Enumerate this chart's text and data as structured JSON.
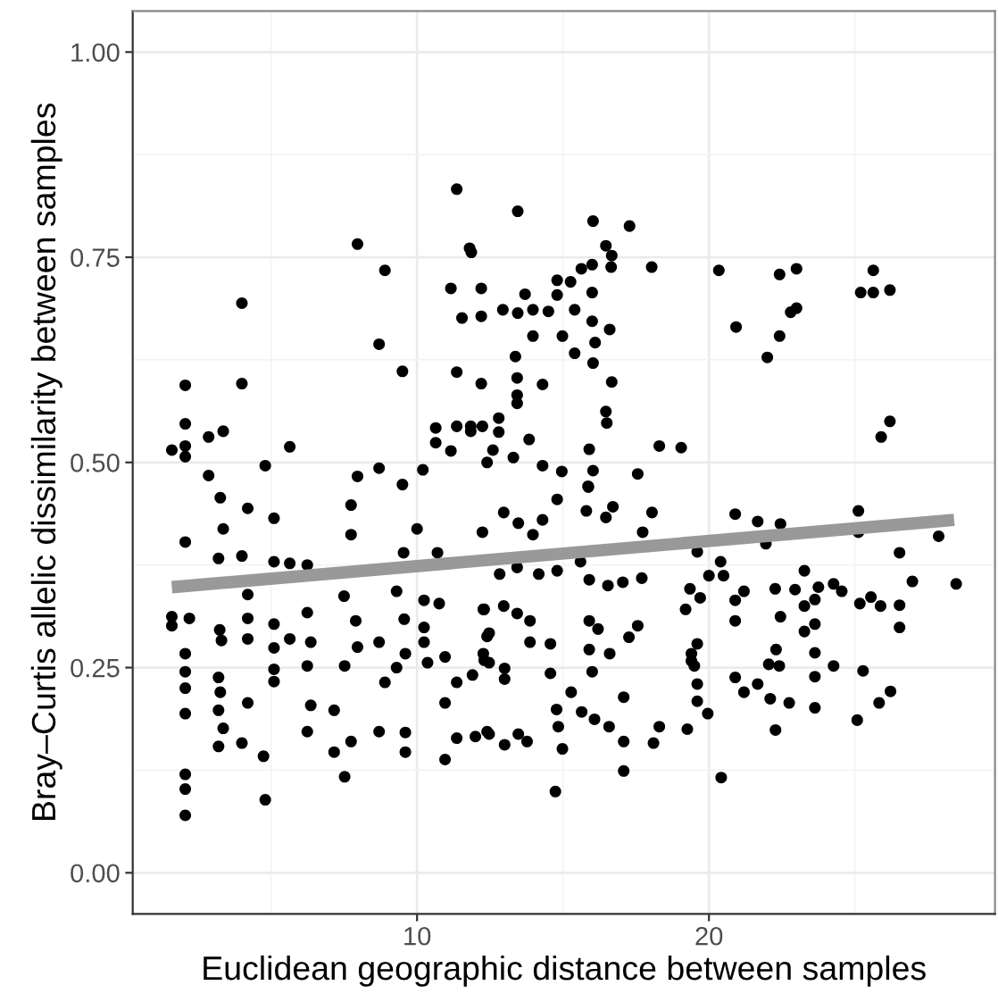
{
  "chart_data": {
    "type": "scatter",
    "xlabel": "Euclidean geographic distance between samples",
    "ylabel": "Bray–Curtis allelic dissimilarity between samples",
    "xlim": [
      0.26,
      29.8
    ],
    "ylim": [
      -0.05,
      1.05
    ],
    "xticks": [
      10,
      20
    ],
    "yticks": [
      {
        "value": 0,
        "label": "0.00"
      },
      {
        "value": 0.25,
        "label": "0.25"
      },
      {
        "value": 0.5,
        "label": "0.50"
      },
      {
        "value": 0.75,
        "label": "0.75"
      },
      {
        "value": 1,
        "label": "1.00"
      }
    ],
    "grid": true,
    "legend": false,
    "series": [
      {
        "marker": "circle",
        "color": "#000000",
        "x": [
          1.6,
          2.06,
          2.06,
          2.06,
          2.06,
          2.86,
          3.36,
          2.86,
          4.0,
          4.0,
          4.8,
          5.64,
          7.96,
          8.9,
          8.7,
          9.5,
          8.7,
          7.96,
          9.5,
          10.2,
          11.36,
          11.8,
          11.86,
          11.16,
          12.2,
          11.54,
          12.2,
          11.36,
          12.2,
          10.64,
          11.36,
          11.84,
          11.84,
          12.24,
          10.64,
          11.16,
          12.4,
          13.45,
          16.03,
          17.28,
          16.47,
          16.67,
          15.63,
          16.0,
          16.65,
          18.04,
          20.34,
          22.42,
          23.0,
          25.63,
          13.7,
          14.8,
          15.26,
          14.8,
          16.0,
          25.2,
          25.63,
          26.2,
          12.94,
          13.45,
          13.97,
          14.5,
          15.4,
          16.0,
          16.6,
          13.97,
          14.98,
          16.1,
          20.93,
          22.8,
          23.0,
          22.42,
          22.0,
          13.37,
          15.4,
          16.03,
          13.43,
          14.3,
          16.67,
          13.43,
          13.43,
          16.47,
          16.5,
          12.8,
          12.8,
          13.84,
          15.9,
          18.3,
          19.05,
          26.2,
          25.9,
          12.6,
          13.3,
          14.3,
          14.96,
          16.03,
          17.56,
          15.87,
          2.06,
          1.6,
          1.6,
          2.2,
          2.06,
          2.06,
          2.06,
          2.06,
          2.06,
          2.06,
          2.06,
          3.26,
          3.36,
          3.2,
          3.24,
          3.3,
          3.2,
          3.26,
          3.2,
          3.36,
          3.2,
          4.2,
          4.0,
          4.2,
          4.2,
          4.2,
          4.2,
          4.0,
          4.74,
          4.8,
          5.1,
          5.1,
          5.64,
          5.1,
          5.1,
          5.1,
          5.1,
          5.64,
          6.24,
          6.24,
          6.36,
          6.24,
          6.36,
          6.24,
          7.16,
          7.16,
          7.52,
          7.74,
          7.74,
          7.5,
          7.9,
          7.96,
          7.52,
          7.74,
          8.7,
          8.7,
          8.9,
          9.3,
          9.56,
          9.6,
          9.3,
          9.6,
          9.6,
          9.54,
          10.0,
          10.24,
          10.24,
          10.24,
          10.36,
          10.96,
          10.96,
          10.96,
          10.7,
          10.76,
          11.36,
          11.36,
          11.9,
          12.0,
          12.4,
          12.24,
          12.3,
          12.4,
          12.3,
          12.97,
          13.47,
          13.97,
          14.3,
          14.8,
          15.8,
          15.86,
          16.47,
          16.71,
          17.73,
          18.05,
          20.9,
          21.67,
          22.45,
          21.95,
          25.12,
          25.12,
          27.87,
          12.83,
          13.43,
          14.17,
          14.8,
          15.6,
          15.9,
          16.54,
          17.05,
          17.7,
          19.6,
          20.0,
          20.4,
          20.5,
          23.27,
          26.53,
          26.97,
          28.47,
          12.27,
          12.97,
          13.43,
          13.87,
          12.47,
          19.35,
          19.2,
          19.7,
          20.9,
          21.2,
          22.27,
          22.95,
          23.75,
          24.27,
          24.55,
          25.17,
          25.55,
          25.88,
          26.53,
          26.53,
          15.9,
          16.2,
          17.26,
          17.56,
          20.9,
          22.45,
          23.27,
          23.63,
          23.63,
          23.27,
          12.27,
          12.47,
          13.0,
          13.0,
          13.87,
          14.57,
          14.57,
          15.9,
          16.6,
          16.0,
          19.4,
          19.4,
          19.6,
          19.5,
          19.6,
          19.6,
          19.96,
          20.9,
          21.2,
          21.67,
          22.05,
          22.41,
          22.3,
          22.1,
          22.75,
          23.63,
          23.63,
          24.27,
          23.63,
          25.28,
          25.83,
          26.22,
          25.08,
          22.28,
          20.42,
          14.78,
          15.28,
          15.64,
          16.08,
          16.58,
          17.08,
          17.08,
          17.08,
          18.1,
          18.3,
          19.26,
          14.84,
          14.98,
          14.74,
          12.47,
          13.0,
          13.47,
          13.77
        ],
        "values": [
          0.515,
          0.594,
          0.547,
          0.52,
          0.507,
          0.531,
          0.538,
          0.484,
          0.694,
          0.596,
          0.496,
          0.519,
          0.766,
          0.734,
          0.644,
          0.611,
          0.493,
          0.483,
          0.473,
          0.491,
          0.833,
          0.761,
          0.756,
          0.712,
          0.712,
          0.676,
          0.678,
          0.61,
          0.596,
          0.542,
          0.544,
          0.544,
          0.538,
          0.544,
          0.524,
          0.514,
          0.5,
          0.806,
          0.794,
          0.788,
          0.764,
          0.752,
          0.736,
          0.741,
          0.738,
          0.738,
          0.734,
          0.729,
          0.736,
          0.734,
          0.705,
          0.722,
          0.72,
          0.704,
          0.707,
          0.707,
          0.707,
          0.71,
          0.686,
          0.682,
          0.686,
          0.684,
          0.686,
          0.672,
          0.662,
          0.654,
          0.654,
          0.646,
          0.665,
          0.683,
          0.688,
          0.654,
          0.628,
          0.629,
          0.633,
          0.621,
          0.603,
          0.595,
          0.598,
          0.582,
          0.572,
          0.562,
          0.548,
          0.554,
          0.537,
          0.528,
          0.516,
          0.52,
          0.518,
          0.55,
          0.531,
          0.515,
          0.506,
          0.496,
          0.489,
          0.49,
          0.486,
          0.47,
          0.403,
          0.312,
          0.301,
          0.31,
          0.267,
          0.245,
          0.225,
          0.194,
          0.12,
          0.102,
          0.07,
          0.457,
          0.419,
          0.383,
          0.296,
          0.283,
          0.238,
          0.22,
          0.198,
          0.176,
          0.154,
          0.444,
          0.386,
          0.339,
          0.31,
          0.285,
          0.207,
          0.158,
          0.142,
          0.089,
          0.432,
          0.379,
          0.377,
          0.303,
          0.274,
          0.248,
          0.233,
          0.285,
          0.375,
          0.317,
          0.281,
          0.252,
          0.204,
          0.172,
          0.198,
          0.147,
          0.117,
          0.448,
          0.412,
          0.337,
          0.307,
          0.275,
          0.252,
          0.16,
          0.172,
          0.281,
          0.232,
          0.343,
          0.309,
          0.267,
          0.25,
          0.171,
          0.147,
          0.39,
          0.419,
          0.332,
          0.299,
          0.281,
          0.256,
          0.263,
          0.207,
          0.138,
          0.39,
          0.328,
          0.232,
          0.164,
          0.241,
          0.166,
          0.172,
          0.415,
          0.321,
          0.288,
          0.259,
          0.439,
          0.426,
          0.412,
          0.43,
          0.455,
          0.441,
          0.471,
          0.433,
          0.446,
          0.415,
          0.439,
          0.437,
          0.428,
          0.425,
          0.401,
          0.441,
          0.415,
          0.41,
          0.364,
          0.372,
          0.364,
          0.368,
          0.379,
          0.357,
          0.35,
          0.354,
          0.359,
          0.391,
          0.362,
          0.379,
          0.362,
          0.368,
          0.39,
          0.355,
          0.352,
          0.321,
          0.325,
          0.316,
          0.307,
          0.292,
          0.346,
          0.321,
          0.335,
          0.332,
          0.343,
          0.346,
          0.345,
          0.348,
          0.352,
          0.343,
          0.328,
          0.336,
          0.325,
          0.326,
          0.299,
          0.307,
          0.297,
          0.287,
          0.301,
          0.307,
          0.312,
          0.325,
          0.333,
          0.303,
          0.294,
          0.267,
          0.256,
          0.249,
          0.236,
          0.281,
          0.279,
          0.243,
          0.272,
          0.267,
          0.245,
          0.267,
          0.258,
          0.279,
          0.252,
          0.23,
          0.209,
          0.194,
          0.238,
          0.22,
          0.23,
          0.254,
          0.252,
          0.272,
          0.212,
          0.207,
          0.268,
          0.239,
          0.252,
          0.201,
          0.246,
          0.207,
          0.221,
          0.186,
          0.174,
          0.116,
          0.199,
          0.22,
          0.196,
          0.187,
          0.178,
          0.214,
          0.16,
          0.124,
          0.158,
          0.178,
          0.175,
          0.178,
          0.151,
          0.099,
          0.169,
          0.156,
          0.169,
          0.16
        ]
      },
      {
        "type": "line",
        "marker": "none",
        "color": "#999999",
        "x": [
          1.6,
          28.4
        ],
        "values": [
          0.348,
          0.43
        ]
      }
    ]
  }
}
